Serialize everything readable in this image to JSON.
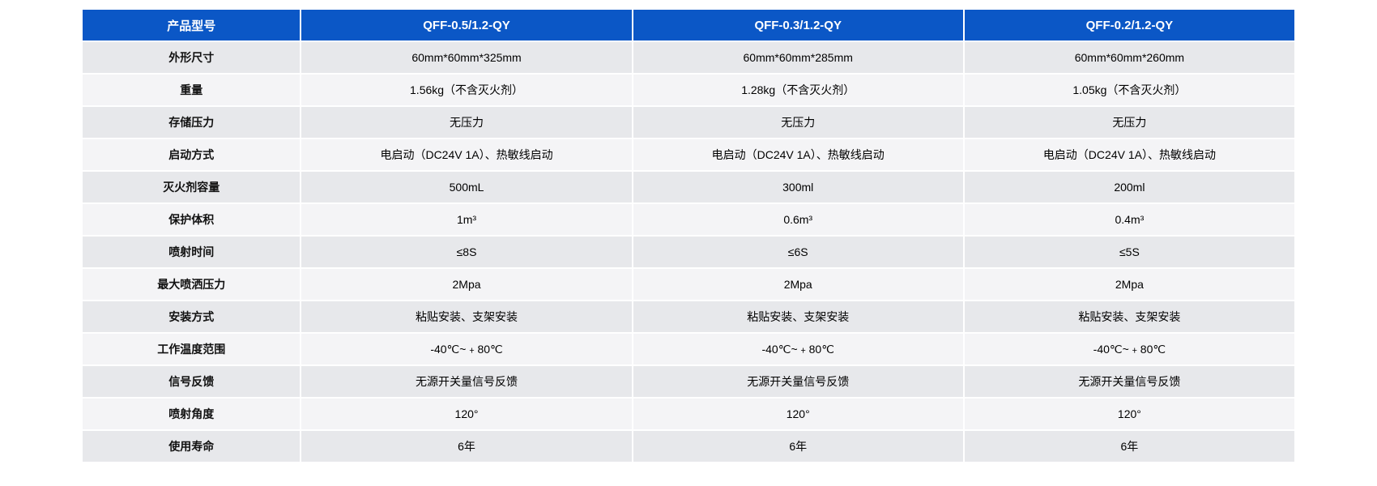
{
  "table": {
    "type": "table",
    "header_bg": "#0b57c6",
    "header_text_color": "#ffffff",
    "row_odd_bg": "#e7e8eb",
    "row_even_bg": "#f4f4f6",
    "label_font_weight": 700,
    "cell_font_size": 14,
    "header_font_size": 15,
    "columns": [
      "产品型号",
      "QFF-0.5/1.2-QY",
      "QFF-0.3/1.2-QY",
      "QFF-0.2/1.2-QY"
    ],
    "rows": [
      [
        "外形尺寸",
        "60mm*60mm*325mm",
        "60mm*60mm*285mm",
        "60mm*60mm*260mm"
      ],
      [
        "重量",
        "1.56kg（不含灭火剂）",
        "1.28kg（不含灭火剂）",
        "1.05kg（不含灭火剂）"
      ],
      [
        "存储压力",
        "无压力",
        "无压力",
        "无压力"
      ],
      [
        "启动方式",
        "电启动（DC24V 1A）、热敏线启动",
        "电启动（DC24V 1A）、热敏线启动",
        "电启动（DC24V 1A）、热敏线启动"
      ],
      [
        "灭火剂容量",
        "500mL",
        "300ml",
        "200ml"
      ],
      [
        "保护体积",
        "1m³",
        "0.6m³",
        "0.4m³"
      ],
      [
        "喷射时间",
        "≤8S",
        "≤6S",
        "≤5S"
      ],
      [
        "最大喷洒压力",
        "2Mpa",
        "2Mpa",
        "2Mpa"
      ],
      [
        "安装方式",
        "粘贴安装、支架安装",
        "粘贴安装、支架安装",
        "粘贴安装、支架安装"
      ],
      [
        "工作温度范围",
        "-40℃~﹢80℃",
        "-40℃~﹢80℃",
        "-40℃~﹢80℃"
      ],
      [
        "信号反馈",
        "无源开关量信号反馈",
        "无源开关量信号反馈",
        "无源开关量信号反馈"
      ],
      [
        "喷射角度",
        "120°",
        "120°",
        "120°"
      ],
      [
        "使用寿命",
        "6年",
        "6年",
        "6年"
      ]
    ]
  }
}
